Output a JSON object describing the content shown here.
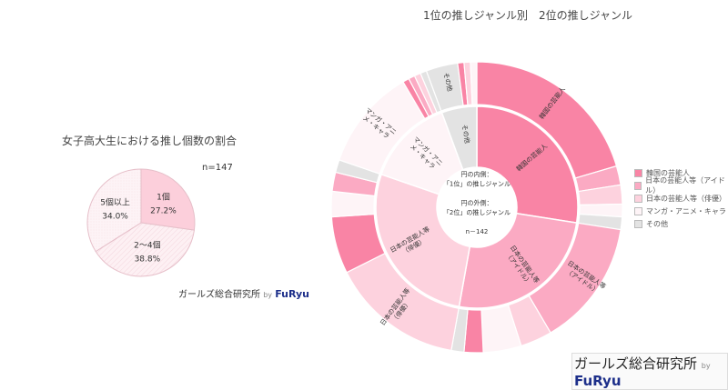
{
  "chart_data": [
    {
      "type": "pie",
      "title": "女子高大生における推し個数の割合",
      "n_label": "n=147",
      "slices": [
        {
          "label": "1個",
          "value": 27.2,
          "value_label": "27.2%",
          "color": "#fccfdb"
        },
        {
          "label": "2〜4個",
          "value": 38.8,
          "value_label": "38.8%",
          "color": "#fdf0f3"
        },
        {
          "label": "5個以上",
          "value": 34.0,
          "value_label": "34.0%",
          "color": "#fdf0f3"
        }
      ]
    },
    {
      "type": "sunburst",
      "title": "1位の推しジャンル別　2位の推しジャンル",
      "center_lines": [
        "円の内側：",
        "「1位」の推しジャンル",
        "",
        "円の外側：",
        "「2位」の推しジャンル",
        "",
        "n－142"
      ],
      "categories": [
        {
          "key": "korean",
          "label": "韓国の芸能人",
          "color": "#f984a5"
        },
        {
          "key": "idol",
          "label": "日本の芸能人等（アイドル）",
          "color": "#fbaac3"
        },
        {
          "key": "actor",
          "label": "日本の芸能人等（俳優）",
          "color": "#fdd2de"
        },
        {
          "key": "manga",
          "label": "マンガ・アニメ・キャラ",
          "color": "#fef4f7"
        },
        {
          "key": "other",
          "label": "その他",
          "color": "#e3e3e3"
        }
      ],
      "inner": [
        {
          "key": "korean",
          "label": "韓国の芸能人",
          "value": 39,
          "outer": [
            [
              "korean",
              29
            ],
            [
              "idol",
              3
            ],
            [
              "actor",
              3
            ],
            [
              "manga",
              2
            ],
            [
              "other",
              2
            ]
          ],
          "outer_label": "韓国の芸能人"
        },
        {
          "key": "idol",
          "label": "日本の芸能人等\n（アイドル）",
          "value": 36,
          "outer": [
            [
              "idol",
              20
            ],
            [
              "actor",
              5
            ],
            [
              "manga",
              6
            ],
            [
              "korean",
              3
            ],
            [
              "other",
              2
            ]
          ],
          "outer_label": "日本の芸能人等\n（アイドル）"
        },
        {
          "key": "actor",
          "label": "日本の芸能人等\n（俳優）",
          "value": 39,
          "outer": [
            [
              "actor",
              21
            ],
            [
              "korean",
              9
            ],
            [
              "manga",
              4
            ],
            [
              "idol",
              3
            ],
            [
              "other",
              2
            ]
          ],
          "outer_label": "日本の芸能人等\n（俳優）"
        },
        {
          "key": "manga",
          "label": "マンガ・アニ\nメ・キャラ",
          "value": 20,
          "outer": [
            [
              "manga",
              16
            ],
            [
              "korean",
              1
            ],
            [
              "idol",
              1
            ],
            [
              "actor",
              1
            ],
            [
              "other",
              1
            ]
          ],
          "outer_label": "マンガ・アニ\nメ・キャラ"
        },
        {
          "key": "other",
          "label": "その他",
          "value": 8,
          "outer": [
            [
              "other",
              5
            ],
            [
              "korean",
              1
            ],
            [
              "actor",
              1
            ],
            [
              "manga",
              1
            ]
          ],
          "outer_label": "その他"
        }
      ]
    }
  ],
  "branding": {
    "name": "ガールズ総合研究所",
    "by": "by",
    "logo": "FuRyu"
  }
}
